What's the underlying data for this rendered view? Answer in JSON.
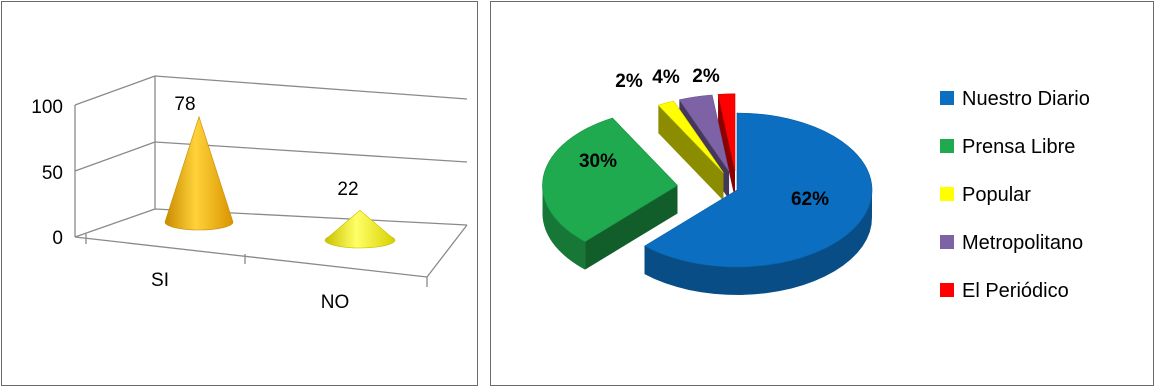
{
  "chart_data": [
    {
      "type": "bar",
      "style": "3d-cone",
      "categories": [
        "SI",
        "NO"
      ],
      "values": [
        78,
        22
      ],
      "data_labels": [
        "78",
        "22"
      ],
      "yticks": [
        "0",
        "50",
        "100"
      ],
      "ylim": [
        0,
        100
      ],
      "grid": true,
      "colors": [
        "#f2b400",
        "#f7f200"
      ]
    },
    {
      "type": "pie",
      "style": "3d-exploded",
      "categories": [
        "Nuestro Diario",
        "Prensa Libre",
        "Popular",
        "Metropolitano",
        "El Periódico"
      ],
      "values": [
        62,
        30,
        2,
        4,
        2
      ],
      "data_labels": [
        "62%",
        "30%",
        "2%",
        "4%",
        "2%"
      ],
      "colors": [
        "#0b6ec0",
        "#1faa4f",
        "#ffff00",
        "#7e62a6",
        "#ff0000"
      ],
      "legend_position": "right"
    }
  ]
}
